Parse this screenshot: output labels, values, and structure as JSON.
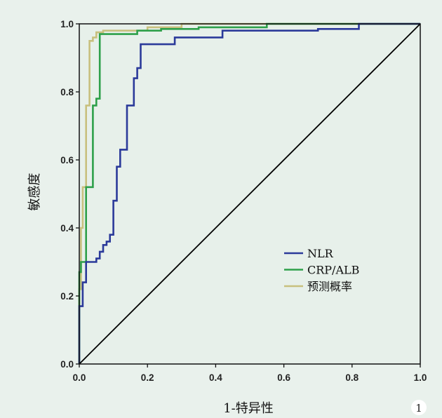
{
  "chart_data": {
    "type": "line",
    "title": "",
    "xlabel": "1-特异性",
    "ylabel": "敏感度",
    "xlim": [
      0,
      1
    ],
    "ylim": [
      0,
      1
    ],
    "xticks": [
      "0.0",
      "0.2",
      "0.4",
      "0.6",
      "0.8",
      "1.0"
    ],
    "yticks": [
      "0.0",
      "0.2",
      "0.4",
      "0.6",
      "0.8",
      "1.0"
    ],
    "grid": false,
    "legend_position": "lower-right",
    "background_color": "#e7f0ea",
    "reference_line": {
      "x": [
        0,
        1
      ],
      "y": [
        0,
        1
      ],
      "color": "#000000"
    },
    "series": [
      {
        "name": "NLR",
        "color": "#2b3a9a",
        "x": [
          0,
          0,
          0.01,
          0.01,
          0.02,
          0.02,
          0.05,
          0.05,
          0.06,
          0.06,
          0.07,
          0.07,
          0.08,
          0.08,
          0.09,
          0.09,
          0.1,
          0.1,
          0.11,
          0.11,
          0.12,
          0.12,
          0.13,
          0.13,
          0.14,
          0.14,
          0.16,
          0.16,
          0.17,
          0.17,
          0.18,
          0.18,
          0.28,
          0.28,
          0.42,
          0.42,
          0.7,
          0.7,
          0.82,
          0.82,
          1.0
        ],
        "y": [
          0,
          0.17,
          0.17,
          0.24,
          0.24,
          0.3,
          0.3,
          0.31,
          0.31,
          0.33,
          0.33,
          0.35,
          0.35,
          0.36,
          0.36,
          0.38,
          0.38,
          0.48,
          0.48,
          0.58,
          0.58,
          0.63,
          0.63,
          0.63,
          0.63,
          0.76,
          0.76,
          0.84,
          0.84,
          0.87,
          0.87,
          0.94,
          0.94,
          0.96,
          0.96,
          0.98,
          0.98,
          0.985,
          0.985,
          1.0,
          1.0
        ]
      },
      {
        "name": "CRP/ALB",
        "color": "#2ea04a",
        "x": [
          0,
          0,
          0.005,
          0.005,
          0.02,
          0.02,
          0.04,
          0.04,
          0.05,
          0.05,
          0.06,
          0.06,
          0.17,
          0.17,
          0.24,
          0.24,
          0.35,
          0.35,
          0.55,
          0.55,
          1.0
        ],
        "y": [
          0,
          0.27,
          0.27,
          0.3,
          0.3,
          0.52,
          0.52,
          0.76,
          0.76,
          0.78,
          0.78,
          0.97,
          0.97,
          0.98,
          0.98,
          0.985,
          0.985,
          0.99,
          0.99,
          1.0,
          1.0
        ]
      },
      {
        "name": "预测概率",
        "color": "#c8c07e",
        "x": [
          0,
          0,
          0.005,
          0.005,
          0.01,
          0.01,
          0.02,
          0.02,
          0.03,
          0.03,
          0.04,
          0.04,
          0.05,
          0.05,
          0.07,
          0.07,
          0.2,
          0.2,
          0.3,
          0.3,
          1.0
        ],
        "y": [
          0,
          0.22,
          0.22,
          0.4,
          0.4,
          0.52,
          0.52,
          0.76,
          0.76,
          0.95,
          0.95,
          0.96,
          0.96,
          0.975,
          0.975,
          0.98,
          0.98,
          0.99,
          0.99,
          1.0,
          1.0
        ]
      }
    ]
  },
  "corner_badge": "1"
}
